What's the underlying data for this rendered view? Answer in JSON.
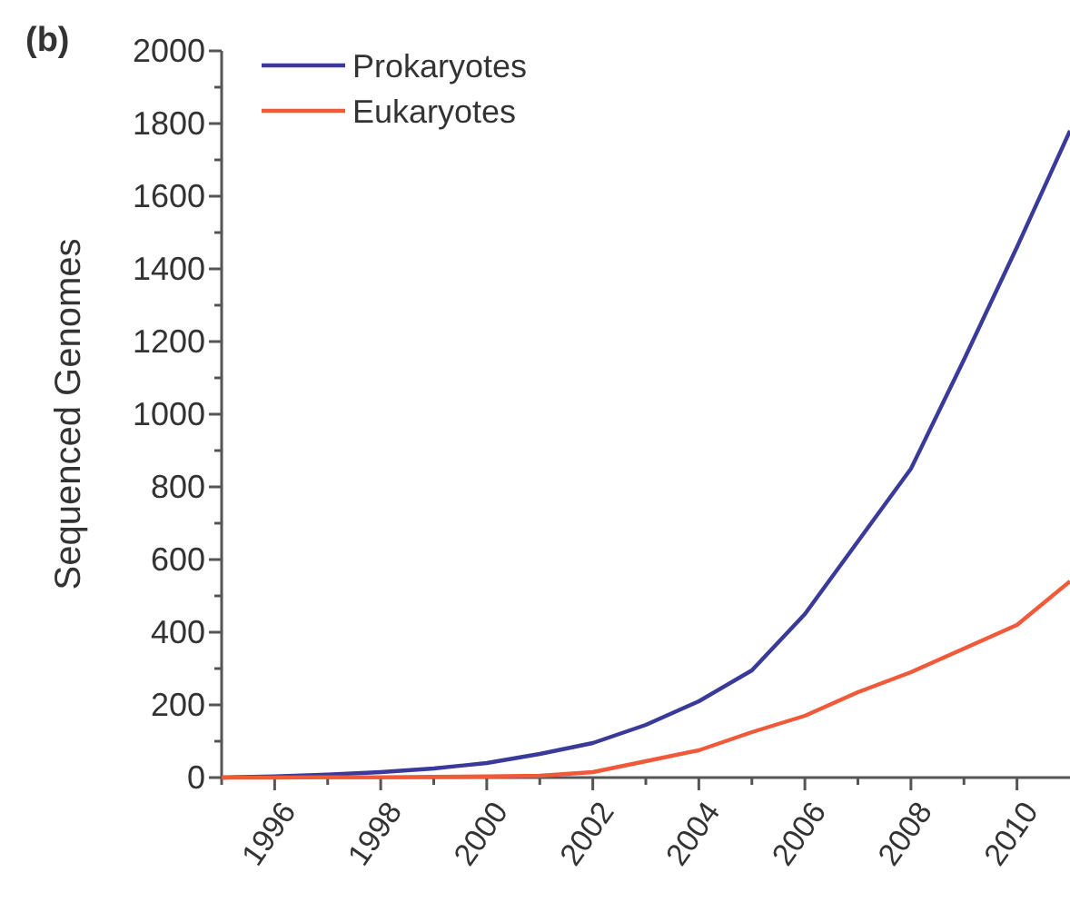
{
  "chart_data": {
    "type": "line",
    "title": "(b)",
    "ylabel": "Sequenced Genomes",
    "x": [
      1995,
      1996,
      1997,
      1998,
      1999,
      2000,
      2001,
      2002,
      2003,
      2004,
      2005,
      2006,
      2007,
      2008,
      2009,
      2010,
      2011
    ],
    "series": [
      {
        "name": "Prokaryotes",
        "color": "#3a3a9a",
        "values": [
          0,
          3,
          8,
          15,
          25,
          40,
          65,
          95,
          145,
          210,
          295,
          450,
          650,
          850,
          1150,
          1460,
          1780
        ]
      },
      {
        "name": "Eukaryotes",
        "color": "#f05a3a",
        "values": [
          0,
          0,
          1,
          1,
          2,
          3,
          5,
          15,
          45,
          75,
          125,
          170,
          235,
          290,
          355,
          420,
          540
        ]
      }
    ],
    "xlim": [
      1995,
      2011
    ],
    "xticks": [
      {
        "value": 1995,
        "label": null
      },
      1996,
      {
        "value": 1997,
        "label": null
      },
      1998,
      {
        "value": 1999,
        "label": null
      },
      2000,
      {
        "value": 2001,
        "label": null
      },
      2002,
      {
        "value": 2003,
        "label": null
      },
      2004,
      {
        "value": 2005,
        "label": null
      },
      2006,
      {
        "value": 2007,
        "label": null
      },
      2008,
      {
        "value": 2009,
        "label": null
      },
      2010
    ],
    "ylim": [
      0,
      2000
    ],
    "yticks": [
      0,
      {
        "value": 100,
        "label": null
      },
      200,
      {
        "value": 300,
        "label": null
      },
      400,
      {
        "value": 500,
        "label": null
      },
      600,
      {
        "value": 700,
        "label": null
      },
      800,
      {
        "value": 900,
        "label": null
      },
      1000,
      {
        "value": 1100,
        "label": null
      },
      1200,
      {
        "value": 1300,
        "label": null
      },
      1400,
      {
        "value": 1500,
        "label": null
      },
      1600,
      {
        "value": 1700,
        "label": null
      },
      1800,
      {
        "value": 1900,
        "label": null
      },
      2000
    ],
    "legend": "top left",
    "grid": false,
    "marker": "none",
    "line_style": "solid"
  }
}
